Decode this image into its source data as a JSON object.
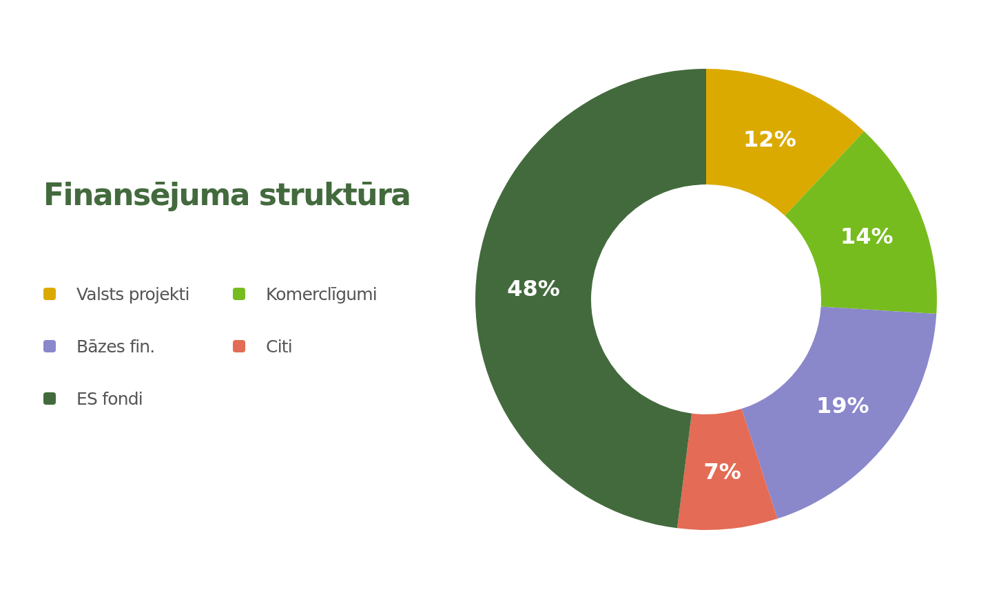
{
  "chart_data": {
    "type": "donut",
    "title": "Finansējuma struktūra",
    "categories": [
      "Valsts projekti",
      "Komerclīgumi",
      "Bāzes fin.",
      "Citi",
      "ES fondi"
    ],
    "values": [
      12,
      14,
      19,
      7,
      48
    ],
    "colors": [
      "#dbaa00",
      "#77bc1f",
      "#8a87cb",
      "#e46b55",
      "#436a3d"
    ],
    "value_labels": [
      "12%",
      "14%",
      "19%",
      "7%",
      "48%"
    ],
    "legend": "left"
  }
}
